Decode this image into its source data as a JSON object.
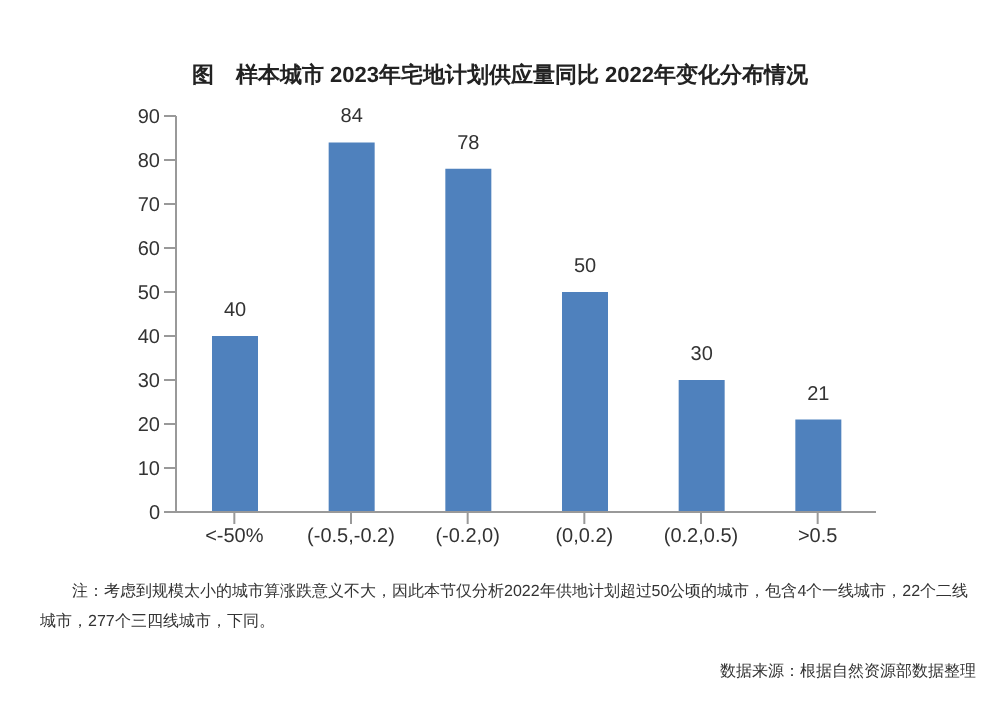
{
  "chart_data": {
    "type": "bar",
    "title": "图　样本城市 2023年宅地计划供应量同比 2022年变化分布情况",
    "categories": [
      "<-50%",
      "(-0.5,-0.2)",
      "(-0.2,0)",
      "(0,0.2)",
      "(0.2,0.5)",
      ">0.5"
    ],
    "values": [
      40,
      84,
      78,
      50,
      30,
      21
    ],
    "color": "#4f81bd",
    "ylim": [
      0,
      90
    ],
    "yticks": [
      0,
      10,
      20,
      30,
      40,
      50,
      60,
      70,
      80,
      90
    ],
    "grid": false,
    "data_labels": true,
    "annotations": [
      "注：考虑到规模太小的城市算涨跌意义不大，因此本节仅分析2022年供地计划超过50公顷的城市，包含4个一线城市，22个二线城市，277个三四线城市，下同。",
      "数据来源：根据自然资源部数据整理"
    ]
  }
}
